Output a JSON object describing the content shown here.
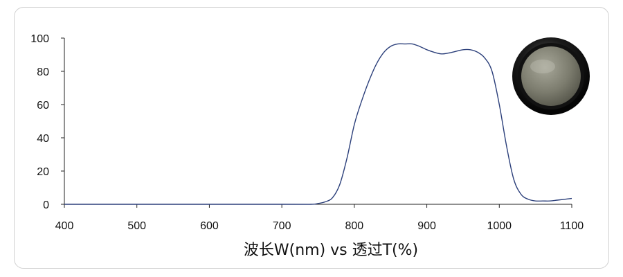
{
  "chart_data": {
    "type": "line",
    "title": "",
    "xlabel": "波长W(nm) vs 透过T(%)",
    "ylabel": "",
    "xlim": [
      400,
      1100
    ],
    "ylim": [
      0,
      100
    ],
    "x_ticks": [
      400,
      500,
      600,
      700,
      800,
      900,
      1000,
      1100
    ],
    "y_ticks": [
      0,
      20,
      40,
      60,
      80,
      100
    ],
    "grid": false,
    "legend": "none",
    "line_color": "#2b3f7a",
    "series": [
      {
        "x": [
          400,
          700,
          740,
          750,
          760,
          770,
          780,
          790,
          800,
          810,
          820,
          830,
          840,
          850,
          860,
          870,
          880,
          890,
          900,
          910,
          920,
          930,
          940,
          950,
          960,
          970,
          980,
          990,
          1000,
          1010,
          1020,
          1030,
          1040,
          1050,
          1060,
          1070,
          1080,
          1090,
          1100
        ],
        "y": [
          0,
          0,
          0,
          0.5,
          1.5,
          4,
          12,
          28,
          48,
          62,
          74,
          84,
          91,
          95,
          96.5,
          96.5,
          96.5,
          95,
          93,
          91.5,
          90.5,
          91,
          92,
          93,
          93,
          91.5,
          88,
          80,
          60,
          35,
          15,
          6,
          3,
          2,
          2,
          2,
          2.5,
          3,
          3.5
        ]
      }
    ]
  },
  "images": {
    "filter_photo": "circular-optical-filter-photo"
  }
}
